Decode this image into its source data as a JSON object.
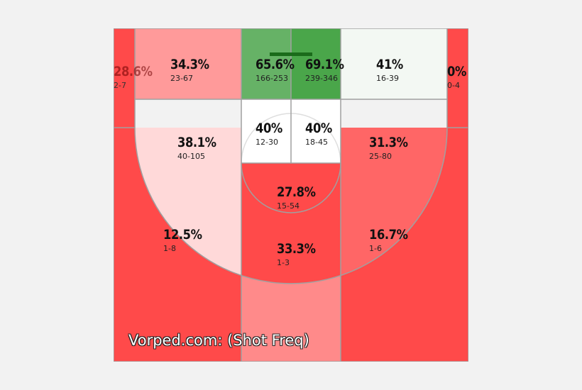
{
  "watermark": "Vorped.com: (Shot Freq)",
  "colors": {
    "zone_line": "#999999",
    "rim_bar": "#1a6b1a"
  },
  "chart_data": {
    "type": "heatmap",
    "title": "",
    "zones": [
      {
        "id": "left-corner",
        "pct": "28.6%",
        "made_attempts": "2-7",
        "color": "#ff4a4a"
      },
      {
        "id": "left-baseline-mid",
        "pct": "34.3%",
        "made_attempts": "23-67",
        "color": "#ff9a9a"
      },
      {
        "id": "restricted-left",
        "pct": "65.6%",
        "made_attempts": "166-253",
        "color": "#66b266"
      },
      {
        "id": "restricted-right",
        "pct": "69.1%",
        "made_attempts": "239-346",
        "color": "#4aa64a"
      },
      {
        "id": "right-baseline-mid",
        "pct": "41%",
        "made_attempts": "16-39",
        "color": "#f3f8f3"
      },
      {
        "id": "right-corner",
        "pct": "0%",
        "made_attempts": "0-4",
        "color": "#ff4a4a"
      },
      {
        "id": "left-wing-mid",
        "pct": "38.1%",
        "made_attempts": "40-105",
        "color": "#ffd9d9"
      },
      {
        "id": "paint-left",
        "pct": "40%",
        "made_attempts": "12-30",
        "color": "#ffffff"
      },
      {
        "id": "paint-right",
        "pct": "40%",
        "made_attempts": "18-45",
        "color": "#ffffff"
      },
      {
        "id": "right-wing-mid",
        "pct": "31.3%",
        "made_attempts": "25-80",
        "color": "#ff6666"
      },
      {
        "id": "top-key-mid",
        "pct": "27.8%",
        "made_attempts": "15-54",
        "color": "#ff4a4a"
      },
      {
        "id": "left-wing-three",
        "pct": "12.5%",
        "made_attempts": "1-8",
        "color": "#ff4a4a"
      },
      {
        "id": "top-key-three",
        "pct": "33.3%",
        "made_attempts": "1-3",
        "color": "#ff8a8a"
      },
      {
        "id": "right-wing-three",
        "pct": "16.7%",
        "made_attempts": "1-6",
        "color": "#ff4a4a"
      }
    ]
  }
}
